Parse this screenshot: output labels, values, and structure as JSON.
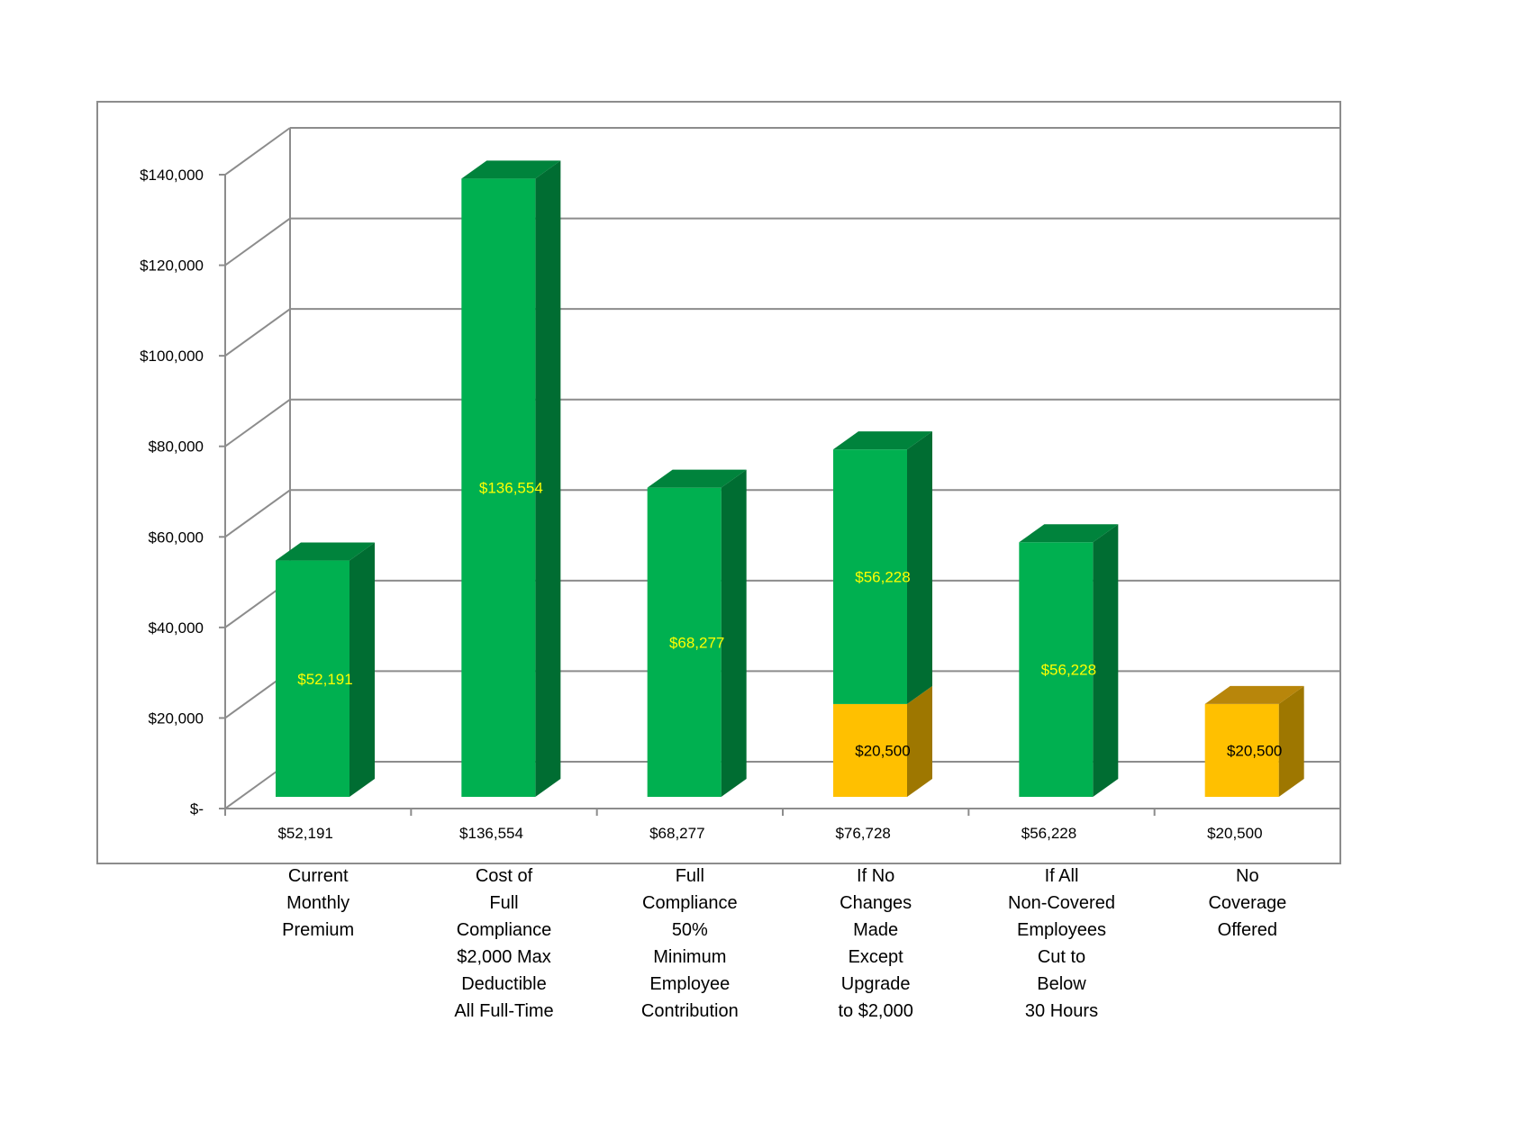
{
  "chart_data": {
    "type": "bar",
    "stacked": true,
    "three_d": true,
    "categories": [
      [
        "Current",
        "Monthly",
        "Premium"
      ],
      [
        "Cost of",
        "Full",
        "Compliance",
        "$2,000 Max",
        "Deductible",
        "All Full-Time"
      ],
      [
        "Full",
        "Compliance",
        "50%",
        "Minimum",
        "Employee",
        "Contribution"
      ],
      [
        "If No",
        "Changes",
        "Made",
        "Except",
        "Upgrade",
        "to $2,000"
      ],
      [
        "If All",
        "Non-Covered",
        "Employees",
        "Cut to",
        "Below",
        "30 Hours"
      ],
      [
        "No",
        "Coverage",
        "Offered"
      ]
    ],
    "totals": [
      "$52,191",
      "$136,554",
      "$68,277",
      "$76,728",
      "$56,228",
      "$20,500"
    ],
    "series": [
      {
        "color": "#FFC000",
        "values": [
          0,
          0,
          0,
          20500,
          0,
          20500
        ],
        "labels": [
          "",
          "",
          "",
          "$20,500",
          "",
          "$20,500"
        ],
        "label_color": "#000000"
      },
      {
        "color": "#00B050",
        "values": [
          52191,
          136554,
          68277,
          56228,
          56228,
          0
        ],
        "labels": [
          "$52,191",
          "$136,554",
          "$68,277",
          "$56,228",
          "$56,228",
          ""
        ],
        "label_color": "#FFFF00"
      }
    ],
    "yticks": [
      {
        "value": 0,
        "label": "$-"
      },
      {
        "value": 20000,
        "label": "$20,000"
      },
      {
        "value": 40000,
        "label": "$40,000"
      },
      {
        "value": 60000,
        "label": "$60,000"
      },
      {
        "value": 80000,
        "label": "$80,000"
      },
      {
        "value": 100000,
        "label": "$100,000"
      },
      {
        "value": 120000,
        "label": "$120,000"
      },
      {
        "value": 140000,
        "label": "$140,000"
      }
    ],
    "ylim": [
      0,
      140000
    ],
    "grid": true,
    "legend": "none",
    "title": "",
    "xlabel": "",
    "ylabel": ""
  }
}
